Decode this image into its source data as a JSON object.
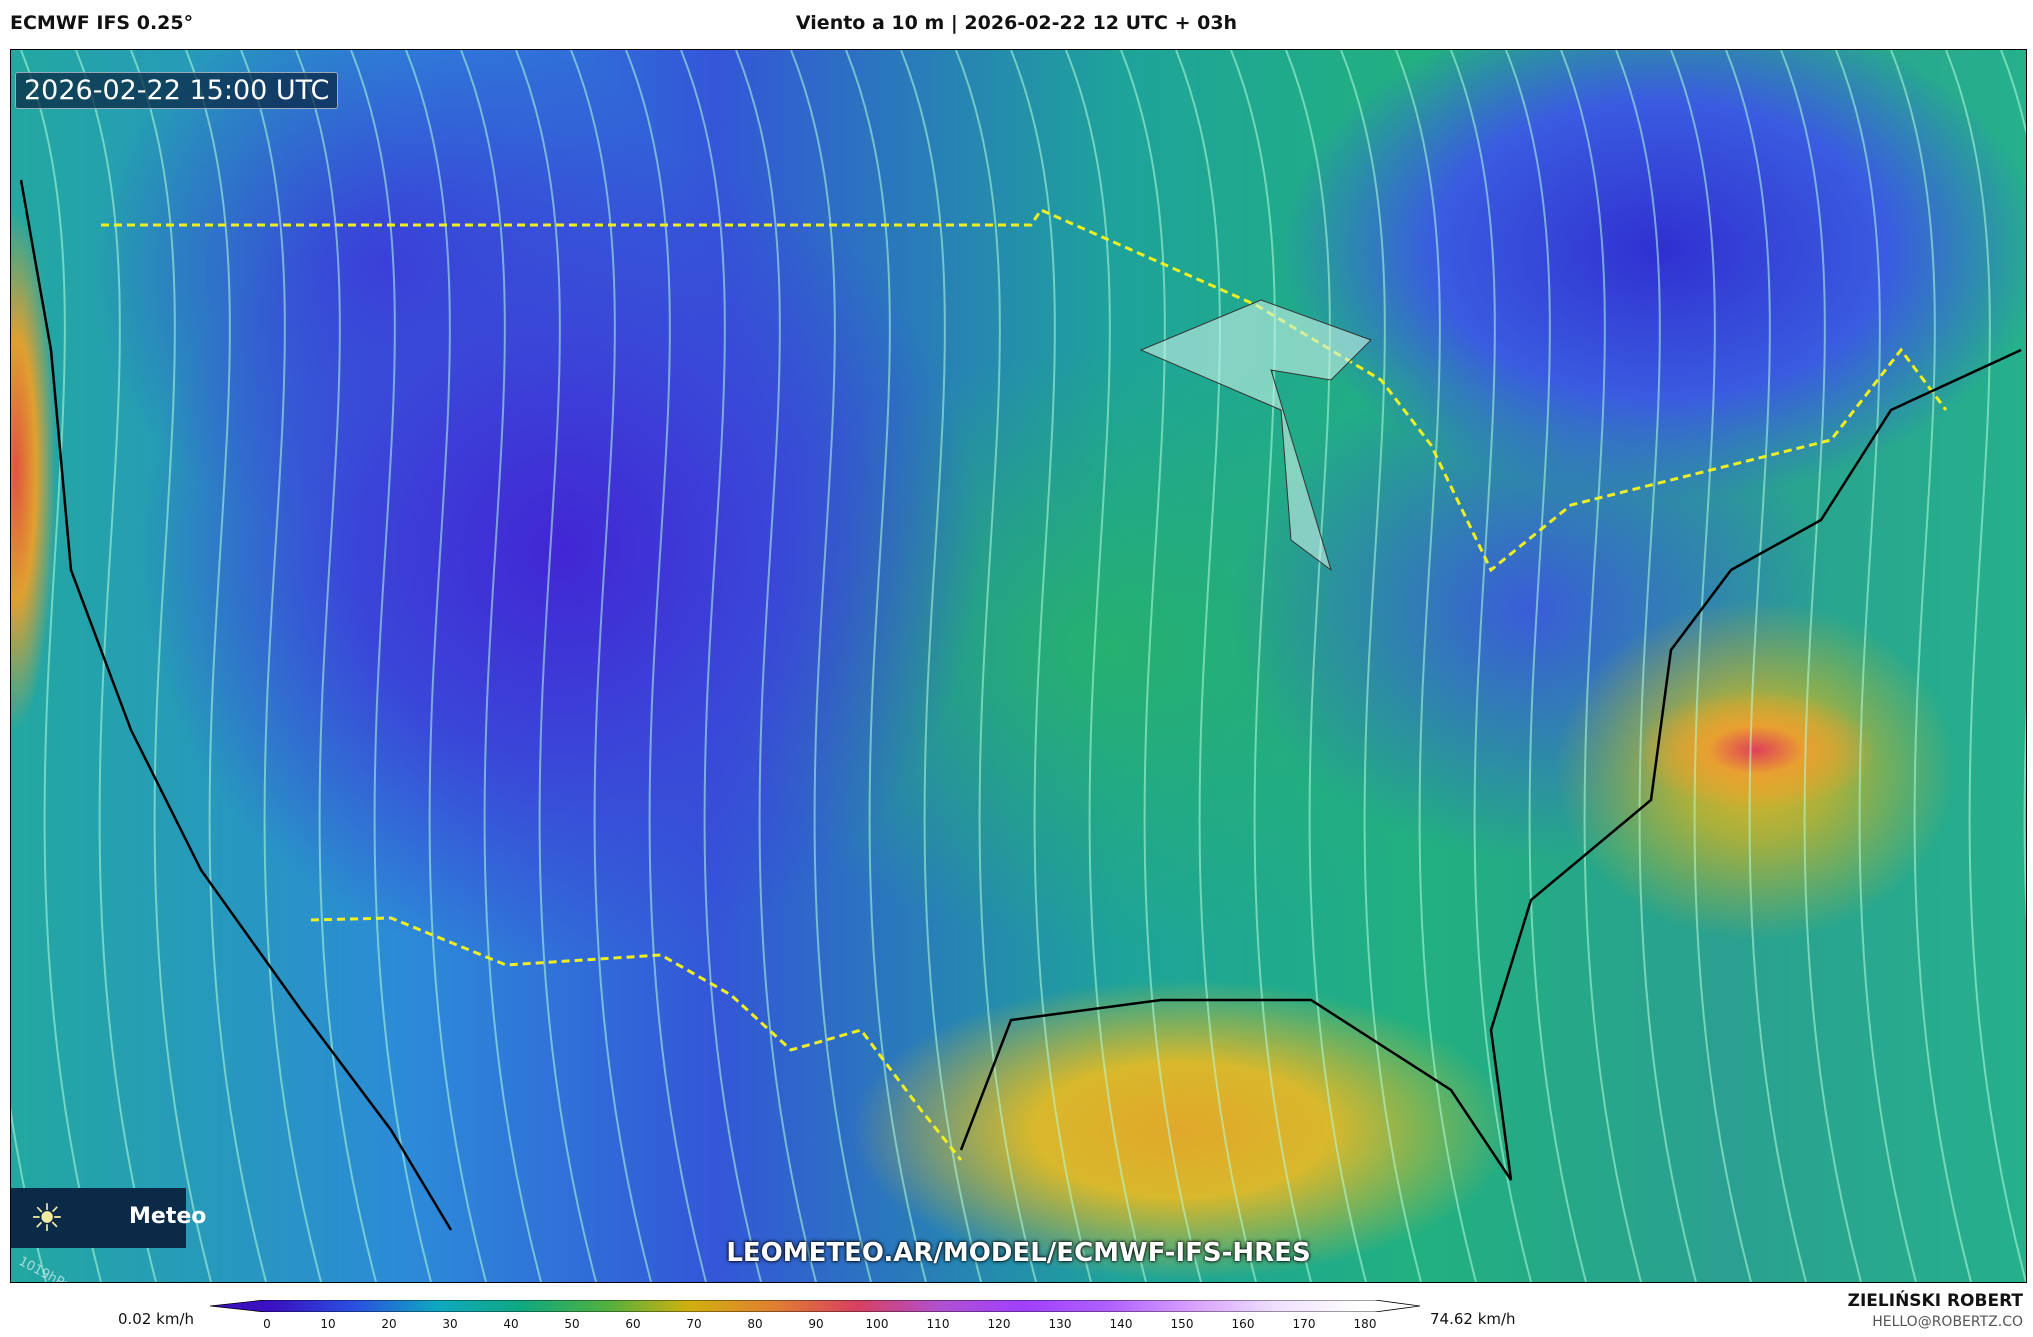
{
  "header": {
    "model": "ECMWF IFS 0.25°",
    "title": "Viento a 10 m | 2026-02-22 12 UTC + 03h"
  },
  "map": {
    "timestamp": "2026-02-22 15:00 UTC",
    "logo_text": "Meteo",
    "logo_icon": "sun-icon",
    "url": "LEOMETEO.AR/MODEL/ECMWF-IFS-HRES",
    "isobar_label": "1019hPa"
  },
  "colorbar": {
    "min_label": "0.02 km/h",
    "max_label": "74.62 km/h",
    "unit": "km/h",
    "ticks": [
      "0",
      "10",
      "20",
      "30",
      "40",
      "50",
      "60",
      "70",
      "80",
      "90",
      "100",
      "110",
      "120",
      "130",
      "140",
      "150",
      "160",
      "170",
      "180"
    ],
    "colors": [
      "#3a10c0",
      "#2a50e0",
      "#10a8c0",
      "#10a880",
      "#50b040",
      "#d0b010",
      "#e08030",
      "#d84060",
      "#b050d0",
      "#a040ff",
      "#b060ff",
      "#d8a0ff",
      "#f0e0ff",
      "#ffffff"
    ]
  },
  "credits": {
    "author": "ZIELIŃSKI ROBERT",
    "email": "HELLO@ROBERTZ.CO"
  }
}
